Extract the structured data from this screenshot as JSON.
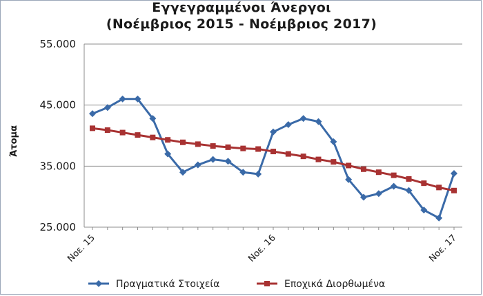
{
  "chart_data": {
    "type": "line",
    "title": "Εγγεγραμμένοι Άνεργοι",
    "subtitle": "(Νοέμβριος 2015 - Νοέμβριος 2017)",
    "ylabel": "Άτομα",
    "xlabel": "",
    "ylim": [
      25000,
      55000
    ],
    "yticks": [
      25000,
      35000,
      45000,
      55000
    ],
    "ytick_labels": [
      "25.000",
      "35.000",
      "45.000",
      "55.000"
    ],
    "xtick_labels": [
      {
        "index": 0,
        "label": "Νοε. 15"
      },
      {
        "index": 12,
        "label": "Νοε. 16"
      },
      {
        "index": 24,
        "label": "Νοε. 17"
      }
    ],
    "grid": "horizontal",
    "legend": "bottom",
    "series": [
      {
        "name": "Πραγματικά Στοιχεία",
        "color": "#3a6aa8",
        "marker": "diamond",
        "values": [
          43600,
          44600,
          46000,
          46000,
          42800,
          37000,
          34000,
          35200,
          36100,
          35800,
          34000,
          33700,
          40600,
          41800,
          42800,
          42300,
          39000,
          32800,
          29900,
          30500,
          31700,
          31000,
          27800,
          26500,
          33800
        ]
      },
      {
        "name": "Εποχικά Διορθωμένα",
        "color": "#a83232",
        "marker": "square",
        "values": [
          41200,
          40900,
          40500,
          40100,
          39700,
          39300,
          38900,
          38600,
          38300,
          38100,
          37900,
          37800,
          37400,
          37000,
          36600,
          36100,
          35700,
          35100,
          34500,
          34000,
          33500,
          32900,
          32200,
          31500,
          31000
        ]
      }
    ]
  }
}
